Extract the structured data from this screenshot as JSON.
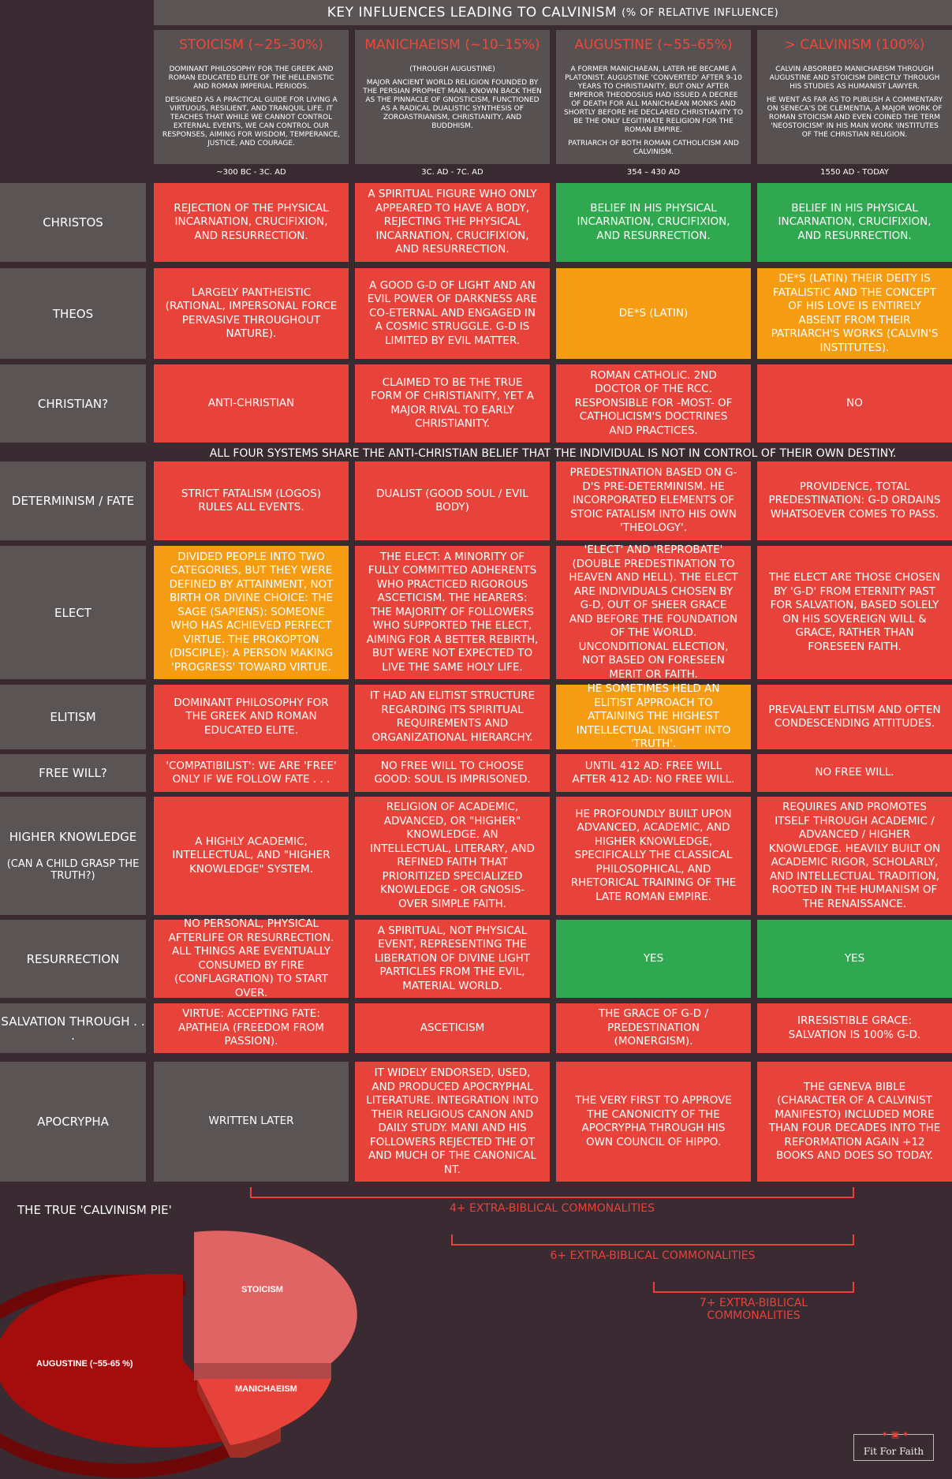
{
  "banner": {
    "title": "KEY INFLUENCES LEADING TO CALVINISM",
    "subtitle": "(% OF RELATIVE INFLUENCE)"
  },
  "columns": [
    {
      "name": "STOICISM (~25–30%)",
      "desc": [
        "DOMINANT PHILOSOPHY FOR THE GREEK AND ROMAN EDUCATED ELITE OF THE HELLENISTIC AND ROMAN IMPERIAL PERIODS.",
        "DESIGNED AS A PRACTICAL GUIDE FOR LIVING A VIRTUOUS, RESILIENT, AND TRANQUIL LIFE. IT TEACHES THAT WHILE WE CANNOT CONTROL EXTERNAL EVENTS, WE CAN CONTROL OUR RESPONSES, AIMING FOR WISDOM, TEMPERANCE, JUSTICE, AND COURAGE."
      ],
      "date": "~300 BC - 3C. AD"
    },
    {
      "name": "MANICHAEISM (~10–15%)",
      "desc": [
        "(THROUGH AUGUSTINE)",
        "MAJOR ANCIENT WORLD RELIGION FOUNDED BY THE PERSIAN PROPHET MANI. KNOWN BACK THEN AS THE PINNACLE OF GNOSTICISM, FUNCTIONED AS A RADICAL DUALISTIC SYNTHESIS OF ZOROASTRIANISM, CHRISTIANITY, AND BUDDHISM."
      ],
      "date": "3C. AD - 7C. AD"
    },
    {
      "name": "AUGUSTINE (~55–65%)",
      "desc": [
        "A FORMER MANICHAEAN, LATER HE BECAME A PLATONIST. AUGUSTINE 'CONVERTED' AFTER 9-10 YEARS TO CHRISTIANITY, BUT ONLY AFTER EMPEROR THEODOSIUS HAD ISSUED A DECREE OF DEATH FOR ALL MANICHAEAN MONKS AND SHORTLY BEFORE HE DECLARED CHRISTIANITY TO BE THE ONLY LEGITIMATE RELIGION FOR THE ROMAN EMPIRE.",
        "PATRIARCH OF BOTH ROMAN CATHOLICISM AND CALVINISM."
      ],
      "date": "354 – 430 AD"
    },
    {
      "name": "> CALVINISM (100%)",
      "desc": [
        "CALVIN ABSORBED MANICHAEISM THROUGH AUGUSTINE AND STOICISM DIRECTLY THROUGH HIS STUDIES AS HUMANIST LAWYER.",
        "HE WENT AS FAR AS TO PUBLISH A COMMENTARY ON SENECA'S DE CLEMENTIA, A MAJOR WORK OF ROMAN STOICISM AND EVEN COINED THE TERM 'NEOSTOICISM' IN HIS MAIN WORK 'INSTITUTES OF THE CHRISTIAN RELIGION."
      ],
      "date": "1550 AD - TODAY"
    }
  ],
  "rows": [
    {
      "label": "CHRISTOS",
      "cells": [
        {
          "text": "REJECTION OF THE PHYSICAL INCARNATION, CRUCIFIXION, AND RESURRECTION.",
          "color": "red"
        },
        {
          "text": "A SPIRITUAL FIGURE WHO ONLY APPEARED TO HAVE A BODY, REJECTING THE PHYSICAL INCARNATION, CRUCIFIXION, AND RESURRECTION.",
          "color": "red"
        },
        {
          "text": "BELIEF IN HIS PHYSICAL INCARNATION, CRUCIFIXION, AND RESURRECTION.",
          "color": "green"
        },
        {
          "text": "BELIEF IN HIS PHYSICAL INCARNATION, CRUCIFIXION, AND RESURRECTION.",
          "color": "green"
        }
      ]
    },
    {
      "label": "THEOS",
      "cells": [
        {
          "text": "LARGELY PANTHEISTIC (RATIONAL, IMPERSONAL FORCE PERVASIVE THROUGHOUT NATURE).",
          "color": "red"
        },
        {
          "text": "A GOOD G-D OF LIGHT AND AN EVIL POWER OF DARKNESS ARE CO-ETERNAL AND ENGAGED IN A COSMIC STRUGGLE. G-D IS LIMITED BY EVIL MATTER.",
          "color": "red"
        },
        {
          "text": "DE*S (LATIN)",
          "color": "orange"
        },
        {
          "text": "DE*S (LATIN) THEIR DEITY IS FATALISTIC AND THE CONCEPT OF HIS LOVE IS ENTIRELY ABSENT FROM THEIR PATRIARCH'S WORKS (CALVIN'S INSTITUTES).",
          "color": "orange"
        }
      ]
    },
    {
      "label": "CHRISTIAN?",
      "cells": [
        {
          "text": "ANTI-CHRISTIAN",
          "color": "red"
        },
        {
          "text": "CLAIMED TO BE THE TRUE FORM OF CHRISTIANITY, YET A MAJOR RIVAL TO EARLY CHRISTIANITY.",
          "color": "red"
        },
        {
          "text": "ROMAN CATHOLIC. 2ND DOCTOR OF THE RCC. RESPONSIBLE FOR -MOST- OF CATHOLICISM'S DOCTRINES AND PRACTICES.",
          "color": "red"
        },
        {
          "text": "NO",
          "color": "red"
        }
      ]
    },
    {
      "label": "DETERMINISM / FATE",
      "cells": [
        {
          "text": "STRICT FATALISM (LOGOS) RULES ALL EVENTS.",
          "color": "red"
        },
        {
          "text": "DUALIST (GOOD SOUL / EVIL BODY)",
          "color": "red"
        },
        {
          "text": "PREDESTINATION BASED ON G-D'S PRE-DETERMINISM. HE INCORPORATED ELEMENTS OF STOIC FATALISM INTO HIS OWN 'THEOLOGY'.",
          "color": "red"
        },
        {
          "text": "PROVIDENCE, TOTAL PREDESTINATION: G-D ORDAINS WHATSOEVER COMES TO PASS.",
          "color": "red"
        }
      ]
    },
    {
      "label": "ELECT",
      "cells": [
        {
          "text": "DIVIDED PEOPLE INTO TWO CATEGORIES, BUT THEY WERE DEFINED BY ATTAINMENT, NOT BIRTH OR DIVINE CHOICE: THE SAGE (SAPIENS): SOMEONE WHO HAS ACHIEVED PERFECT VIRTUE. THE PROKOPTON (DISCIPLE): A PERSON MAKING 'PROGRESS' TOWARD VIRTUE.",
          "color": "orange"
        },
        {
          "text": "THE ELECT: A MINORITY OF FULLY COMMITTED ADHERENTS WHO PRACTICED RIGOROUS ASCETICISM. THE HEARERS: THE MAJORITY OF FOLLOWERS WHO SUPPORTED THE ELECT, AIMING FOR A BETTER REBIRTH, BUT WERE NOT EXPECTED TO LIVE THE SAME HOLY LIFE.",
          "color": "red"
        },
        {
          "text": "'ELECT' AND 'REPROBATE' (DOUBLE PREDESTINATION TO HEAVEN AND HELL). THE ELECT ARE INDIVIDUALS CHOSEN BY G-D, OUT OF SHEER GRACE AND BEFORE THE FOUNDATION OF THE WORLD. UNCONDITIONAL ELECTION, NOT BASED ON FORESEEN MERIT OR FAITH.",
          "color": "red"
        },
        {
          "text": "THE ELECT ARE THOSE CHOSEN BY 'G-D' FROM ETERNITY PAST FOR SALVATION, BASED SOLELY ON HIS SOVEREIGN WILL & GRACE, RATHER THAN FORESEEN FAITH.",
          "color": "red"
        }
      ]
    },
    {
      "label": "ELITISM",
      "cells": [
        {
          "text": "DOMINANT PHILOSOPHY FOR THE GREEK AND ROMAN EDUCATED ELITE.",
          "color": "red"
        },
        {
          "text": "IT HAD AN ELITIST STRUCTURE REGARDING ITS SPIRITUAL REQUIREMENTS AND ORGANIZATIONAL HIERARCHY.",
          "color": "red"
        },
        {
          "text": "HE SOMETIMES HELD AN ELITIST APPROACH TO ATTAINING THE HIGHEST INTELLECTUAL INSIGHT INTO 'TRUTH'.",
          "color": "orange"
        },
        {
          "text": "PREVALENT ELITISM AND OFTEN CONDESCENDING ATTITUDES.",
          "color": "red"
        }
      ]
    },
    {
      "label": "FREE WILL?",
      "cells": [
        {
          "text": "'COMPATIBILIST': WE ARE 'FREE' ONLY IF WE FOLLOW FATE . . .",
          "color": "red"
        },
        {
          "text": "NO FREE WILL TO CHOOSE GOOD: SOUL IS IMPRISONED.",
          "color": "red"
        },
        {
          "text": "UNTIL 412 AD: FREE WILL AFTER 412 AD: NO FREE WILL.",
          "color": "red"
        },
        {
          "text": "NO FREE WILL.",
          "color": "red"
        }
      ]
    },
    {
      "label": "HIGHER KNOWLEDGE",
      "sublabel": "(CAN A CHILD GRASP THE TRUTH?)",
      "cells": [
        {
          "text": "A HIGHLY ACADEMIC, INTELLECTUAL, AND \"HIGHER KNOWLEDGE\" SYSTEM.",
          "color": "red"
        },
        {
          "text": "RELIGION OF ACADEMIC, ADVANCED, OR \"HIGHER\" KNOWLEDGE. AN INTELLECTUAL, LITERARY, AND REFINED FAITH THAT PRIORITIZED SPECIALIZED KNOWLEDGE - OR GNOSIS- OVER SIMPLE FAITH.",
          "color": "red"
        },
        {
          "text": "HE PROFOUNDLY BUILT UPON ADVANCED, ACADEMIC, AND HIGHER KNOWLEDGE, SPECIFICALLY THE CLASSICAL PHILOSOPHICAL, AND RHETORICAL TRAINING OF THE LATE ROMAN EMPIRE.",
          "color": "red"
        },
        {
          "text": "REQUIRES AND PROMOTES ITSELF THROUGH ACADEMIC / ADVANCED / HIGHER KNOWLEDGE. HEAVILY BUILT ON ACADEMIC RIGOR, SCHOLARLY, AND INTELLECTUAL TRADITION, ROOTED IN THE HUMANISM OF THE RENAISSANCE.",
          "color": "red"
        }
      ]
    },
    {
      "label": "RESURRECTION",
      "cells": [
        {
          "text": "NO PERSONAL, PHYSICAL AFTERLIFE OR RESURRECTION. ALL THINGS ARE EVENTUALLY CONSUMED BY FIRE (CONFLAGRATION) TO START OVER.",
          "color": "red"
        },
        {
          "text": "A SPIRITUAL, NOT PHYSICAL EVENT, REPRESENTING THE LIBERATION OF DIVINE LIGHT PARTICLES FROM THE EVIL, MATERIAL WORLD.",
          "color": "red"
        },
        {
          "text": "YES",
          "color": "green"
        },
        {
          "text": "YES",
          "color": "green"
        }
      ]
    },
    {
      "label": "SALVATION THROUGH . . .",
      "cells": [
        {
          "text": "VIRTUE: ACCEPTING FATE: APATHEIA (FREEDOM FROM PASSION).",
          "color": "red"
        },
        {
          "text": "ASCETICISM",
          "color": "red"
        },
        {
          "text": "THE GRACE OF G-D / PREDESTINATION (MONERGISM).",
          "color": "red"
        },
        {
          "text": "IRRESISTIBLE GRACE: SALVATION IS 100% G-D.",
          "color": "red"
        }
      ]
    },
    {
      "label": "APOCRYPHA",
      "cells": [
        {
          "text": "WRITTEN LATER",
          "color": "gray"
        },
        {
          "text": "IT WIDELY ENDORSED, USED, AND PRODUCED APOCRYPHAL LITERATURE. INTEGRATION INTO THEIR RELIGIOUS CANON AND DAILY STUDY. MANI AND HIS FOLLOWERS REJECTED THE OT AND MUCH OF THE CANONICAL NT.",
          "color": "red"
        },
        {
          "text": "THE VERY FIRST TO APPROVE THE CANONICITY OF THE APOCRYPHA THROUGH HIS OWN COUNCIL OF HIPPO.",
          "color": "red"
        },
        {
          "text": "THE GENEVA BIBLE (CHARACTER OF A CALVINIST MANIFESTO) INCLUDED MORE THAN FOUR DECADES INTO THE REFORMATION AGAIN +12 BOOKS AND DOES SO TODAY.",
          "color": "red"
        }
      ]
    }
  ],
  "shared_note": "ALL FOUR SYSTEMS SHARE THE ANTI-CHRISTIAN BELIEF THAT THE INDIVIDUAL IS NOT IN CONTROL OF THEIR OWN DESTINY.",
  "brackets": [
    "4+ EXTRA-BIBLICAL COMMONALITIES",
    "6+ EXTRA-BIBLICAL COMMONALITIES",
    "7+ EXTRA-BIBLICAL COMMONALITIES"
  ],
  "pie": {
    "title": "THE TRUE 'CALVINISM PIE'",
    "slices": [
      {
        "label": "AUGUSTINE (~55-65 %)",
        "value": 60,
        "color": "#a50d0d"
      },
      {
        "label": "STOICISM",
        "value": 27.5,
        "color": "#e06464"
      },
      {
        "label": "MANICHAEISM",
        "value": 12.5,
        "color": "#e8433a"
      }
    ]
  },
  "logo": {
    "text": "Fit For Faith"
  }
}
